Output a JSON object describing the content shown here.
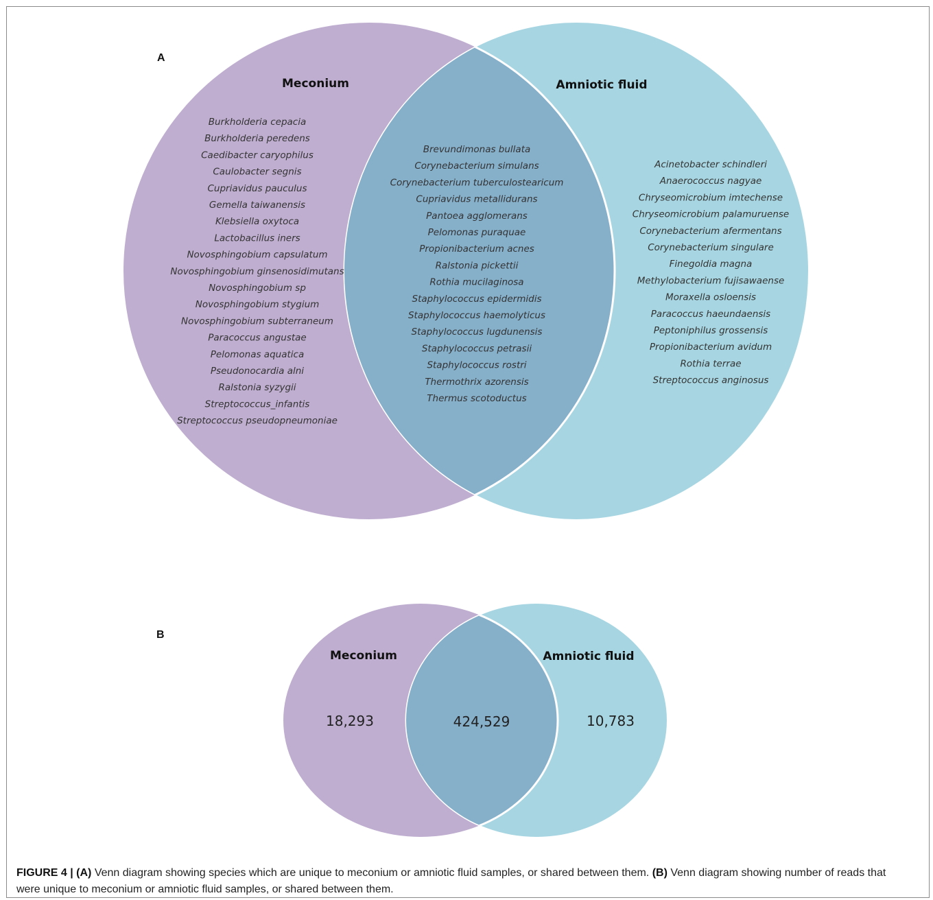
{
  "colors": {
    "meconium": "#bfaed0",
    "amniotic": "#a7d6e2",
    "overlap": "#86afca",
    "divider": "#ffffff"
  },
  "panelA": {
    "letter": "A",
    "left_title": "Meconium",
    "right_title": "Amniotic fluid",
    "meconium_only": [
      "Burkholderia cepacia",
      "Burkholderia peredens",
      "Caedibacter caryophilus",
      "Caulobacter segnis",
      "Cupriavidus pauculus",
      "Gemella taiwanensis",
      "Klebsiella oxytoca",
      "Lactobacillus iners",
      "Novosphingobium capsulatum",
      "Novosphingobium ginsenosidimutans",
      "Novosphingobium sp",
      "Novosphingobium stygium",
      "Novosphingobium subterraneum",
      "Paracoccus angustae",
      "Pelomonas aquatica",
      "Pseudonocardia alni",
      "Ralstonia syzygii",
      "Streptococcus_infantis",
      "Streptococcus pseudopneumoniae"
    ],
    "shared": [
      "Brevundimonas bullata",
      "Corynebacterium simulans",
      "Corynebacterium tuberculostearicum",
      "Cupriavidus metallidurans",
      "Pantoea agglomerans",
      "Pelomonas puraquae",
      "Propionibacterium acnes",
      "Ralstonia pickettii",
      "Rothia mucilaginosa",
      "Staphylococcus epidermidis",
      "Staphylococcus haemolyticus",
      "Staphylococcus lugdunensis",
      "Staphylococcus petrasii",
      "Staphylococcus rostri",
      "Thermothrix azorensis",
      "Thermus scotoductus"
    ],
    "amniotic_only": [
      "Acinetobacter schindleri",
      "Anaerococcus nagyae",
      "Chryseomicrobium imtechense",
      "Chryseomicrobium palamuruense",
      "Corynebacterium afermentans",
      "Corynebacterium singulare",
      "Finegoldia magna",
      "Methylobacterium fujisawaense",
      "Moraxella osloensis",
      "Paracoccus haeundaensis",
      "Peptoniphilus grossensis",
      "Propionibacterium avidum",
      "Rothia terrae",
      "Streptococcus anginosus"
    ]
  },
  "panelB": {
    "letter": "B",
    "left_title": "Meconium",
    "right_title": "Amniotic fluid",
    "meconium_only": "18,293",
    "shared": "424,529",
    "amniotic_only": "10,783"
  },
  "caption": {
    "label": "FIGURE 4 | (A)",
    "part_a": " Venn diagram showing species which are unique to meconium or amniotic fluid samples, or shared between them. ",
    "label_b": "(B)",
    "part_b": " Venn diagram showing number of reads that were unique to meconium or amniotic fluid samples, or shared between them."
  }
}
